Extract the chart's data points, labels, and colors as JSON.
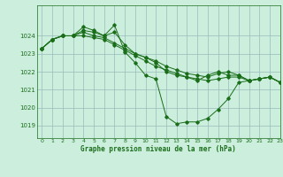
{
  "title": "Graphe pression niveau de la mer (hPa)",
  "background_color": "#cceedd",
  "grid_color": "#99bbbb",
  "line_color": "#1a6e1a",
  "xlim": [
    -0.5,
    23
  ],
  "ylim": [
    1018.3,
    1025.7
  ],
  "yticks": [
    1019,
    1020,
    1021,
    1022,
    1023,
    1024
  ],
  "xticks": [
    0,
    1,
    2,
    3,
    4,
    5,
    6,
    7,
    8,
    9,
    10,
    11,
    12,
    13,
    14,
    15,
    16,
    17,
    18,
    19,
    20,
    21,
    22,
    23
  ],
  "series": [
    [
      1023.3,
      1023.8,
      1024.0,
      1024.0,
      1024.5,
      1024.3,
      1024.0,
      1024.6,
      1023.1,
      1022.5,
      1021.8,
      1021.6,
      1019.5,
      1019.1,
      1019.2,
      1019.2,
      1019.4,
      1019.9,
      1020.5,
      1021.4,
      1021.5,
      1021.6,
      1021.7,
      1021.4
    ],
    [
      1023.3,
      1023.8,
      1024.0,
      1024.0,
      1024.3,
      1024.2,
      1024.0,
      1024.2,
      1023.5,
      1023.0,
      1022.8,
      1022.5,
      1022.0,
      1021.8,
      1021.7,
      1021.5,
      1021.8,
      1022.0,
      1021.8,
      1021.8,
      1021.5,
      1021.6,
      1021.7,
      1021.4
    ],
    [
      1023.3,
      1023.8,
      1024.0,
      1024.0,
      1024.2,
      1024.0,
      1023.9,
      1023.6,
      1023.3,
      1023.0,
      1022.8,
      1022.6,
      1022.3,
      1022.1,
      1021.9,
      1021.8,
      1021.7,
      1021.9,
      1022.0,
      1021.8,
      1021.5,
      1021.6,
      1021.7,
      1021.4
    ],
    [
      1023.3,
      1023.8,
      1024.0,
      1024.0,
      1024.0,
      1023.9,
      1023.8,
      1023.5,
      1023.2,
      1022.9,
      1022.6,
      1022.3,
      1022.1,
      1021.9,
      1021.7,
      1021.6,
      1021.5,
      1021.6,
      1021.7,
      1021.7,
      1021.5,
      1021.6,
      1021.7,
      1021.4
    ]
  ]
}
